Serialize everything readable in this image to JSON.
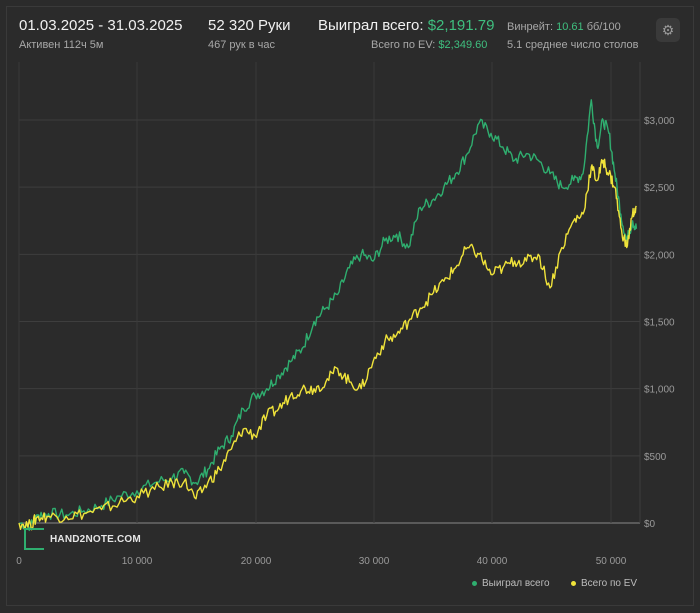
{
  "header": {
    "date_range": "01.03.2025 - 31.03.2025",
    "active": "Активен 112ч 5м",
    "hands": "52 320 Руки",
    "hands_per_hour": "467 рук в час",
    "won_label": "Выиграл всего:",
    "won_value": "$2,191.79",
    "ev_label": "Всего по EV:",
    "ev_value": "$2,349.60",
    "winrate_label": "Винрейт:",
    "winrate_value": "10.61",
    "winrate_unit": "бб/100",
    "tables": "5.1 среднее число столов"
  },
  "logo": "HAND2NOTE.COM",
  "colors": {
    "won": "#2fae6f",
    "ev": "#f0e33a",
    "accent": "#3fbf7f"
  },
  "chart_data": {
    "type": "line",
    "xlim": [
      0,
      52320
    ],
    "ylim": [
      0,
      3000
    ],
    "x_ticks": [
      "0",
      "10 000",
      "20 000",
      "30 000",
      "40 000",
      "50 000"
    ],
    "y_ticks": [
      "$0",
      "$500",
      "$1,000",
      "$1,500",
      "$2,000",
      "$2,500",
      "$3,000"
    ],
    "grid": true,
    "legend_position": "bottom-right",
    "series": [
      {
        "name": "Выиграл всего",
        "x": [
          0,
          1000,
          1500,
          2500,
          4000,
          5500,
          7000,
          8500,
          10000,
          11500,
          13000,
          14000,
          15000,
          16000,
          17000,
          18000,
          19000,
          20000,
          21000,
          22000,
          23000,
          24000,
          25000,
          26000,
          27000,
          28000,
          29000,
          30000,
          31000,
          32000,
          33000,
          34000,
          35000,
          36000,
          37000,
          38000,
          39000,
          40000,
          41000,
          42000,
          43000,
          44000,
          45000,
          46000,
          47000,
          47800,
          48500,
          49000,
          49500,
          50000,
          50500,
          51000,
          51500,
          52000,
          52320
        ],
        "y": [
          0,
          -20,
          60,
          70,
          60,
          90,
          130,
          200,
          240,
          300,
          340,
          370,
          300,
          400,
          550,
          650,
          850,
          950,
          1000,
          1100,
          1200,
          1300,
          1500,
          1600,
          1700,
          1900,
          2000,
          1950,
          2100,
          2150,
          2050,
          2350,
          2400,
          2500,
          2600,
          2750,
          2980,
          2900,
          2800,
          2700,
          2750,
          2700,
          2600,
          2500,
          2550,
          2600,
          3150,
          2800,
          3000,
          2900,
          2600,
          2300,
          2100,
          2250,
          2190
        ]
      },
      {
        "name": "Всего по EV",
        "x": [
          0,
          1000,
          1500,
          2500,
          4000,
          5500,
          7000,
          8500,
          10000,
          11500,
          13000,
          14000,
          15000,
          16000,
          17000,
          18000,
          19000,
          20000,
          21000,
          22000,
          23000,
          24000,
          25000,
          26000,
          27000,
          28000,
          29000,
          30000,
          31000,
          32000,
          33000,
          34000,
          35000,
          36000,
          37000,
          38000,
          39000,
          40000,
          41000,
          42000,
          43000,
          44000,
          45000,
          46000,
          47000,
          47800,
          48500,
          49000,
          49500,
          50000,
          50500,
          51000,
          51500,
          52000,
          52320
        ],
        "y": [
          0,
          -20,
          40,
          50,
          50,
          70,
          100,
          150,
          200,
          250,
          300,
          310,
          180,
          300,
          400,
          550,
          700,
          650,
          800,
          850,
          950,
          1000,
          1000,
          1050,
          1150,
          1050,
          1000,
          1200,
          1350,
          1400,
          1500,
          1600,
          1700,
          1800,
          1900,
          2050,
          2000,
          1850,
          1900,
          1950,
          1950,
          2000,
          1750,
          2050,
          2250,
          2300,
          2650,
          2550,
          2700,
          2600,
          2500,
          2200,
          2050,
          2300,
          2350
        ]
      }
    ]
  }
}
